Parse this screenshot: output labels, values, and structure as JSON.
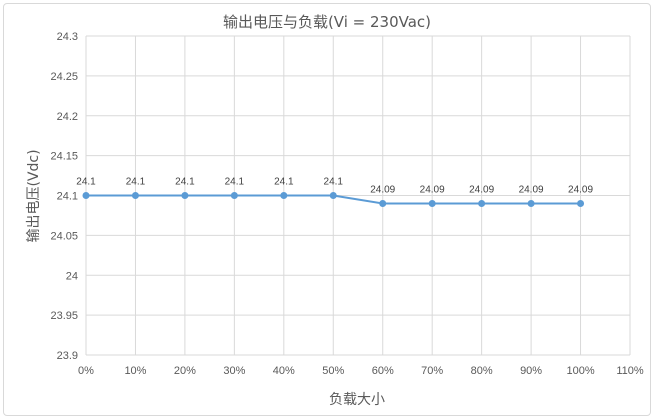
{
  "chart_data": {
    "type": "line",
    "title": "输出电压与负载(Vi = 230Vac)",
    "xlabel": "负载大小",
    "ylabel": "输出电压(Vdc)",
    "x": [
      0,
      10,
      20,
      30,
      40,
      50,
      60,
      70,
      80,
      90,
      100
    ],
    "x_unit": "%",
    "x_tick_labels": [
      "0%",
      "10%",
      "20%",
      "30%",
      "40%",
      "50%",
      "60%",
      "70%",
      "80%",
      "90%",
      "100%",
      "110%"
    ],
    "xlim": [
      0,
      110
    ],
    "y_tick_labels": [
      "23.9",
      "23.95",
      "24",
      "24.05",
      "24.1",
      "24.15",
      "24.2",
      "24.25",
      "24.3"
    ],
    "ylim": [
      23.9,
      24.3
    ],
    "series": [
      {
        "values": [
          24.1,
          24.1,
          24.1,
          24.1,
          24.1,
          24.1,
          24.09,
          24.09,
          24.09,
          24.09,
          24.09
        ],
        "data_labels": [
          "24.1",
          "24.1",
          "24.1",
          "24.1",
          "24.1",
          "24.1",
          "24.09",
          "24.09",
          "24.09",
          "24.09",
          "24.09"
        ],
        "color": "#5b9bd5"
      }
    ],
    "grid": true,
    "legend": "none"
  }
}
